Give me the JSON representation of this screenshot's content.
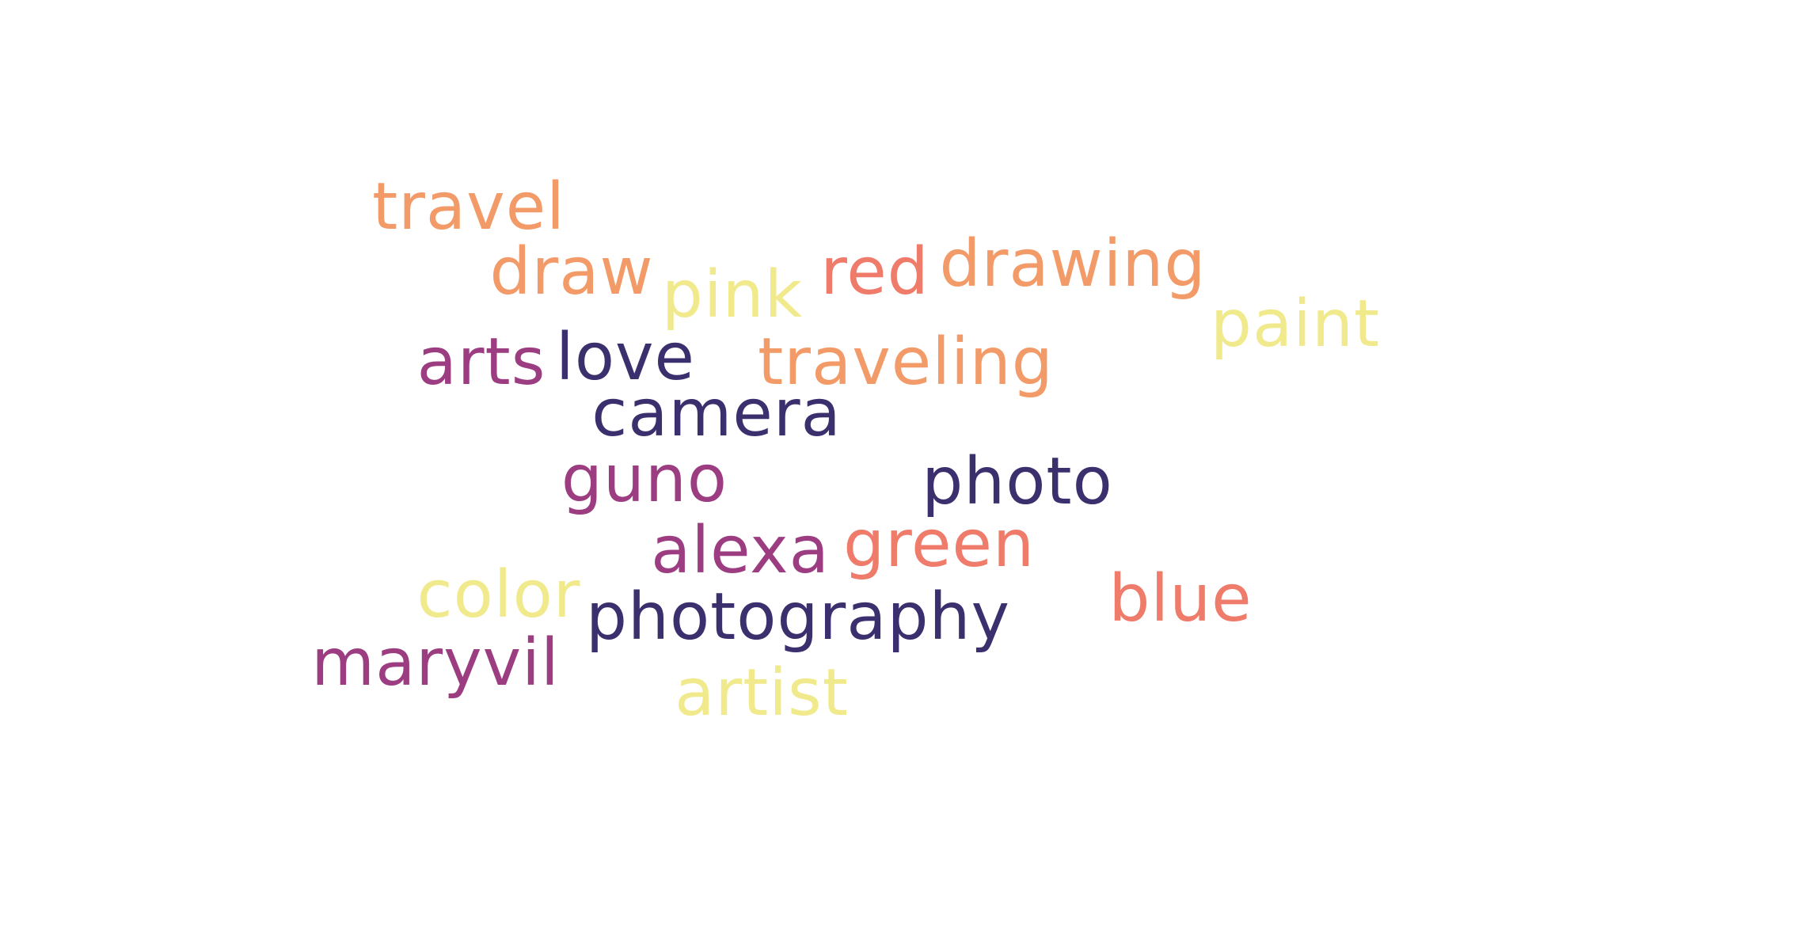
{
  "palette": {
    "dark_navy": "#3b2f6e",
    "plum": "#9c3d82",
    "coral": "#ef7b6b",
    "peach": "#f39b68",
    "pale_yellow": "#f1ea8d",
    "background": "#ffffff"
  },
  "words": {
    "travel": {
      "text": "travel",
      "color": "#f39b68"
    },
    "draw": {
      "text": "draw",
      "color": "#f39b68"
    },
    "pink": {
      "text": "pink",
      "color": "#f1ea8d"
    },
    "red": {
      "text": "red",
      "color": "#ef7b6b"
    },
    "drawing": {
      "text": "drawing",
      "color": "#f39b68"
    },
    "paint": {
      "text": "paint",
      "color": "#f1ea8d"
    },
    "arts": {
      "text": "arts",
      "color": "#9c3d82"
    },
    "love": {
      "text": "love",
      "color": "#3b2f6e"
    },
    "traveling": {
      "text": "traveling",
      "color": "#f39b68"
    },
    "camera": {
      "text": "camera",
      "color": "#3b2f6e"
    },
    "guno": {
      "text": "guno",
      "color": "#9c3d82"
    },
    "photo": {
      "text": "photo",
      "color": "#3b2f6e"
    },
    "alexa": {
      "text": "alexa",
      "color": "#9c3d82"
    },
    "green": {
      "text": "green",
      "color": "#ef7b6b"
    },
    "color": {
      "text": "color",
      "color": "#f1ea8d"
    },
    "photography": {
      "text": "photography",
      "color": "#3b2f6e"
    },
    "blue": {
      "text": "blue",
      "color": "#ef7b6b"
    },
    "maryvil": {
      "text": "maryvil",
      "color": "#9c3d82"
    },
    "artist": {
      "text": "artist",
      "color": "#f1ea8d"
    }
  }
}
